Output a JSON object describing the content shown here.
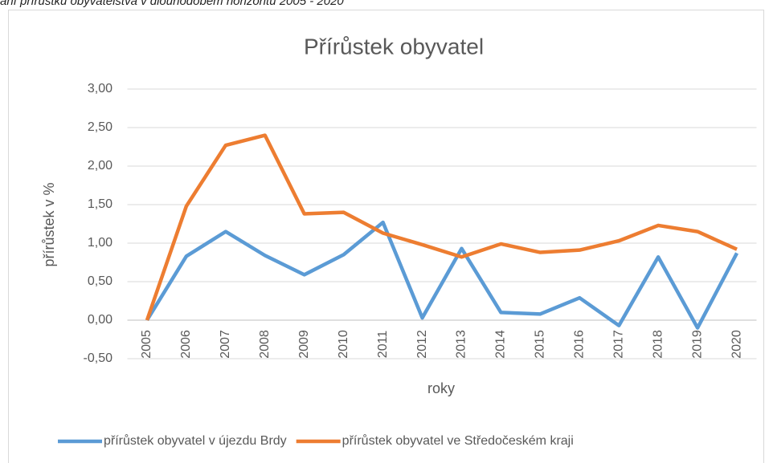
{
  "caption": "ání přírůstku obyvatelstva v dlouhodobém horizontu 2005 - 2020",
  "chart_data": {
    "type": "line",
    "title": "Přírůstek obyvatel",
    "y_label": "přírůstek v %",
    "x_label": "roky",
    "categories": [
      "2005",
      "2006",
      "2007",
      "2008",
      "2009",
      "2010",
      "2011",
      "2012",
      "2013",
      "2014",
      "2015",
      "2016",
      "2017",
      "2018",
      "2019",
      "2020"
    ],
    "series": [
      {
        "name": "přírůstek obyvatel v újezdu Brdy",
        "color": "#5b9bd5",
        "values": [
          0,
          0.83,
          1.15,
          0.84,
          0.59,
          0.85,
          1.27,
          0.03,
          0.93,
          0.1,
          0.08,
          0.29,
          -0.07,
          0.82,
          -0.1,
          0.87
        ]
      },
      {
        "name": "přírůstek obyvatel ve Středočeském kraji",
        "color": "#ed7d31",
        "values": [
          0,
          1.48,
          2.27,
          2.4,
          1.38,
          1.4,
          1.13,
          0.98,
          0.82,
          0.99,
          0.88,
          0.91,
          1.03,
          1.23,
          1.15,
          0.92
        ]
      }
    ],
    "ylim": [
      -0.5,
      3
    ],
    "yticks": [
      {
        "value": -0.5,
        "label": "-0,50"
      },
      {
        "value": 0,
        "label": "0,00"
      },
      {
        "value": 0.5,
        "label": "0,50"
      },
      {
        "value": 1,
        "label": "1,00"
      },
      {
        "value": 1.5,
        "label": "1,50"
      },
      {
        "value": 2,
        "label": "2,00"
      },
      {
        "value": 2.5,
        "label": "2,50"
      },
      {
        "value": 3,
        "label": "3,00"
      }
    ],
    "grid": true,
    "legend": "bottom"
  }
}
